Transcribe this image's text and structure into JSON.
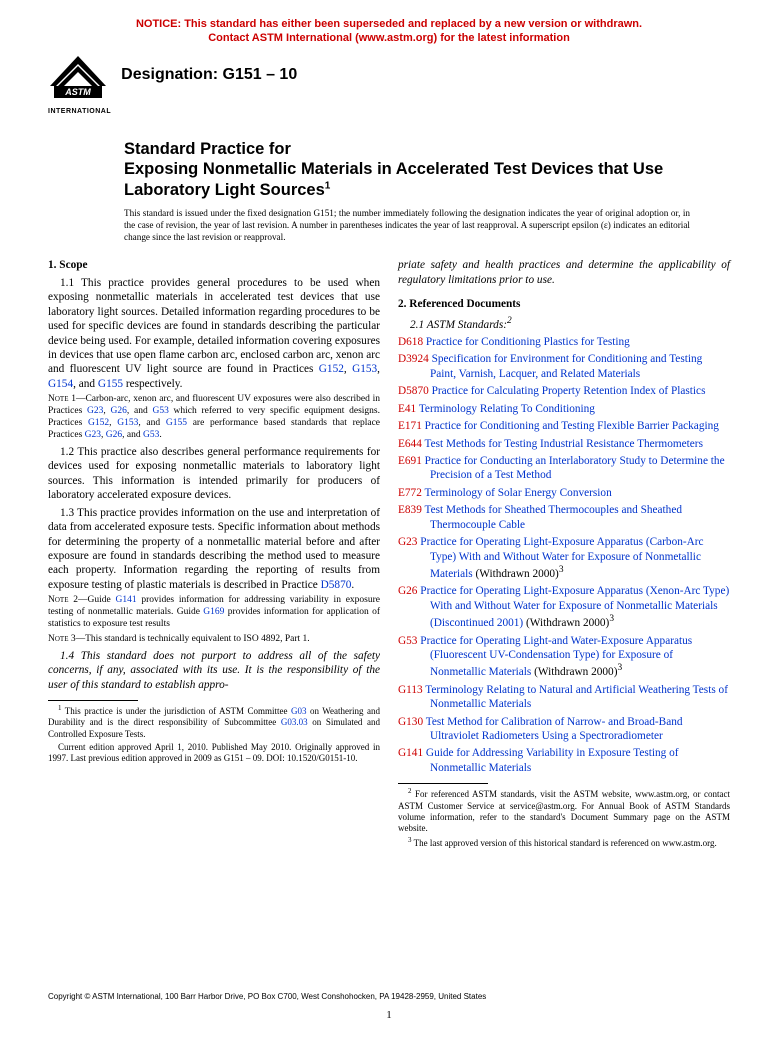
{
  "colors": {
    "notice": "#cc0000",
    "link": "#0033cc",
    "desig_red": "#cc0000",
    "text": "#000000",
    "background": "#ffffff"
  },
  "notice": {
    "line1": "NOTICE: This standard has either been superseded and replaced by a new version or withdrawn.",
    "line2": "Contact ASTM International (www.astm.org) for the latest information"
  },
  "header": {
    "designation_label": "Designation: G151 – 10",
    "logo_label": "INTERNATIONAL"
  },
  "title": {
    "l1": "Standard Practice for",
    "l2": "Exposing Nonmetallic Materials in Accelerated Test Devices that Use Laboratory Light Sources",
    "sup": "1"
  },
  "issuance": "This standard is issued under the fixed designation G151; the number immediately following the designation indicates the year of original adoption or, in the case of revision, the year of last revision. A number in parentheses indicates the year of last reapproval. A superscript epsilon (ε) indicates an editorial change since the last revision or reapproval.",
  "scope": {
    "head": "1. Scope",
    "p1_a": "1.1 This practice provides general procedures to be used when exposing nonmetallic materials in accelerated test devices that use laboratory light sources. Detailed information regarding procedures to be used for specific devices are found in standards describing the particular device being used. For example, detailed information covering exposures in devices that use open flame carbon arc, enclosed carbon arc, xenon arc and fluorescent UV light source are found in Practices ",
    "p1_g152": "G152",
    "p1_s1": ", ",
    "p1_g153": "G153",
    "p1_s2": ", ",
    "p1_g154": "G154",
    "p1_s3": ", and ",
    "p1_g155": "G155",
    "p1_b": " respectively.",
    "n1_label": "Note 1—",
    "n1_a": "Carbon-arc, xenon arc, and fluorescent UV exposures were also described in Practices ",
    "n1_g23": "G23",
    "n1_s1": ", ",
    "n1_g26": "G26",
    "n1_s2": ", and ",
    "n1_g53": "G53",
    "n1_b": " which referred to very specific equipment designs. Practices ",
    "n1_g152": "G152",
    "n1_s3": ", ",
    "n1_g153": "G153",
    "n1_s4": ", and ",
    "n1_g155": "G155",
    "n1_c": " are performance based standards that replace Practices ",
    "n1_g23b": "G23",
    "n1_s5": ", ",
    "n1_g26b": "G26",
    "n1_s6": ", and ",
    "n1_g53b": "G53",
    "n1_d": ".",
    "p2": "1.2 This practice also describes general performance requirements for devices used for exposing nonmetallic materials to laboratory light sources. This information is intended primarily for producers of laboratory accelerated exposure devices.",
    "p3_a": "1.3 This practice provides information on the use and interpretation of data from accelerated exposure tests. Specific information about methods for determining the property of a nonmetallic material before and after exposure are found in standards describing the method used to measure each property. Information regarding the reporting of results from exposure testing of plastic materials is described in Practice ",
    "p3_d5870": "D5870",
    "p3_b": ".",
    "n2_label": "Note 2—",
    "n2_a": "Guide ",
    "n2_g141": "G141",
    "n2_b": " provides information for addressing variability in exposure testing of nonmetallic materials. Guide ",
    "n2_g169": "G169",
    "n2_c": " provides information for application of statistics to exposure test results",
    "n3_label": "Note 3—",
    "n3": "This standard is technically equivalent to ISO 4892, Part 1.",
    "p4a": "1.4 This standard does not purport to address all of the safety concerns, if any, associated with its use. It is the responsibility of the user of this standard to establish appro-",
    "p4b": "priate safety and health practices and determine the applicability of regulatory limitations prior to use."
  },
  "refs": {
    "head": "2. Referenced Documents",
    "sub": "2.1 ASTM Standards:",
    "sub_sup": "2",
    "items": [
      {
        "d": "D618",
        "t": " Practice for Conditioning Plastics for Testing"
      },
      {
        "d": "D3924",
        "t": " Specification for Environment for Conditioning and Testing Paint, Varnish, Lacquer, and Related Materials"
      },
      {
        "d": "D5870",
        "t": " Practice for Calculating Property Retention Index of Plastics"
      },
      {
        "d": "E41",
        "t": " Terminology Relating To Conditioning"
      },
      {
        "d": "E171",
        "t": " Practice for Conditioning and Testing Flexible Barrier Packaging"
      },
      {
        "d": "E644",
        "t": " Test Methods for Testing Industrial Resistance Thermometers"
      },
      {
        "d": "E691",
        "t": " Practice for Conducting an Interlaboratory Study to Determine the Precision of a Test Method"
      },
      {
        "d": "E772",
        "t": " Terminology of Solar Energy Conversion"
      },
      {
        "d": "E839",
        "t": " Test Methods for Sheathed Thermocouples and Sheathed Thermocouple Cable"
      },
      {
        "d": "G23",
        "t": " Practice for Operating Light-Exposure Apparatus (Carbon-Arc Type) With and Without Water for Exposure of Nonmetallic Materials",
        "w": " (Withdrawn 2000)",
        "s": "3"
      },
      {
        "d": "G26",
        "t": " Practice for Operating Light-Exposure Apparatus (Xenon-Arc Type) With and Without Water for Exposure of Nonmetallic Materials (Discontinued 2001)",
        "w": " (Withdrawn 2000)",
        "s": "3"
      },
      {
        "d": "G53",
        "t": " Practice for Operating Light-and Water-Exposure Apparatus (Fluorescent UV-Condensation Type) for Exposure of Nonmetallic Materials",
        "w": " (Withdrawn 2000)",
        "s": "3"
      },
      {
        "d": "G113",
        "t": " Terminology Relating to Natural and Artificial Weathering Tests of Nonmetallic Materials"
      },
      {
        "d": "G130",
        "t": " Test Method for Calibration of Narrow- and Broad-Band Ultraviolet Radiometers Using a Spectroradiometer"
      },
      {
        "d": "G141",
        "t": " Guide for Addressing Variability in Exposure Testing of Nonmetallic Materials"
      }
    ]
  },
  "footnotes": {
    "left": {
      "p1_a": " This practice is under the jurisdiction of ASTM Committee ",
      "p1_g03": "G03",
      "p1_b": " on Weathering and Durability and is the direct responsibility of Subcommittee ",
      "p1_g0303": "G03.03",
      "p1_c": " on Simulated and Controlled Exposure Tests.",
      "p2": "Current edition approved April 1, 2010. Published May 2010. Originally approved in 1997. Last previous edition approved in 2009 as G151 – 09. DOI: 10.1520/G0151-10."
    },
    "right": {
      "p1": " For referenced ASTM standards, visit the ASTM website, www.astm.org, or contact ASTM Customer Service at service@astm.org. For Annual Book of ASTM Standards volume information, refer to the standard's Document Summary page on the ASTM website.",
      "p2": " The last approved version of this historical standard is referenced on www.astm.org."
    }
  },
  "copyright": "Copyright © ASTM International, 100 Barr Harbor Drive, PO Box C700, West Conshohocken, PA 19428-2959, United States",
  "page_number": "1"
}
